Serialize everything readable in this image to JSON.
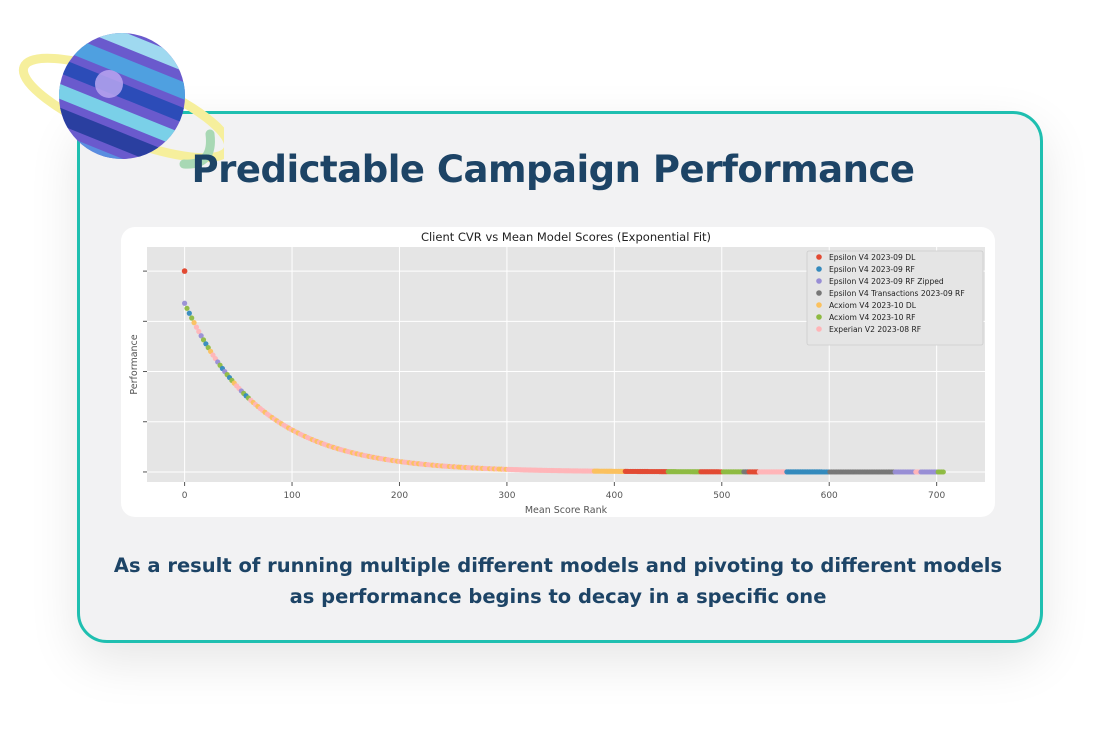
{
  "header": {
    "title": "Predictable Campaign Performance"
  },
  "caption": {
    "line1": "As a result of running multiple different models and pivoting to different models",
    "line2": "as performance begins to decay in a specific one"
  },
  "chart_data": {
    "type": "scatter",
    "title": "Client CVR vs Mean Model Scores (Exponential Fit)",
    "xlabel": "Mean Score Rank",
    "ylabel": "Performance",
    "xlim": [
      -35,
      745
    ],
    "ylim": [
      -0.05,
      1.12
    ],
    "x_ticks": [
      0,
      100,
      200,
      300,
      400,
      500,
      600,
      700
    ],
    "y_tick_count": 5,
    "grid": true,
    "legend_position": "top-right",
    "fit": {
      "form": "exponential",
      "points_from_rank": 0,
      "points_to_rank": 707,
      "outlier": {
        "x": 0,
        "y": 1.0
      }
    },
    "series": [
      {
        "name": "Epsilon V4 2023-09 DL",
        "color": "#e24a33",
        "ranges": [
          [
            410,
            450
          ],
          [
            480,
            500
          ],
          [
            525,
            535
          ]
        ]
      },
      {
        "name": "Epsilon V4 2023-09 RF",
        "color": "#348abd",
        "ranges": [
          [
            560,
            600
          ],
          [
            540,
            555
          ]
        ]
      },
      {
        "name": "Epsilon V4 2023-09 RF Zipped",
        "color": "#988ed5",
        "ranges": [
          [
            0,
            40
          ],
          [
            660,
            680
          ],
          [
            685,
            705
          ]
        ]
      },
      {
        "name": "Epsilon V4 Transactions 2023-09 RF",
        "color": "#777777",
        "ranges": [
          [
            600,
            660
          ],
          [
            515,
            525
          ]
        ]
      },
      {
        "name": "Acxiom V4 2023-10 DL",
        "color": "#fbc15e",
        "ranges": [
          [
            20,
            60
          ],
          [
            380,
            410
          ],
          [
            300,
            320
          ]
        ]
      },
      {
        "name": "Acxiom V4 2023-10 RF",
        "color": "#8eba42",
        "ranges": [
          [
            15,
            45
          ],
          [
            450,
            480
          ],
          [
            500,
            520
          ],
          [
            700,
            707
          ]
        ]
      },
      {
        "name": "Experian V2 2023-08 RF",
        "color": "#ffb5b8",
        "ranges": [
          [
            40,
            380
          ],
          [
            535,
            560
          ],
          [
            320,
            370
          ]
        ]
      }
    ]
  }
}
